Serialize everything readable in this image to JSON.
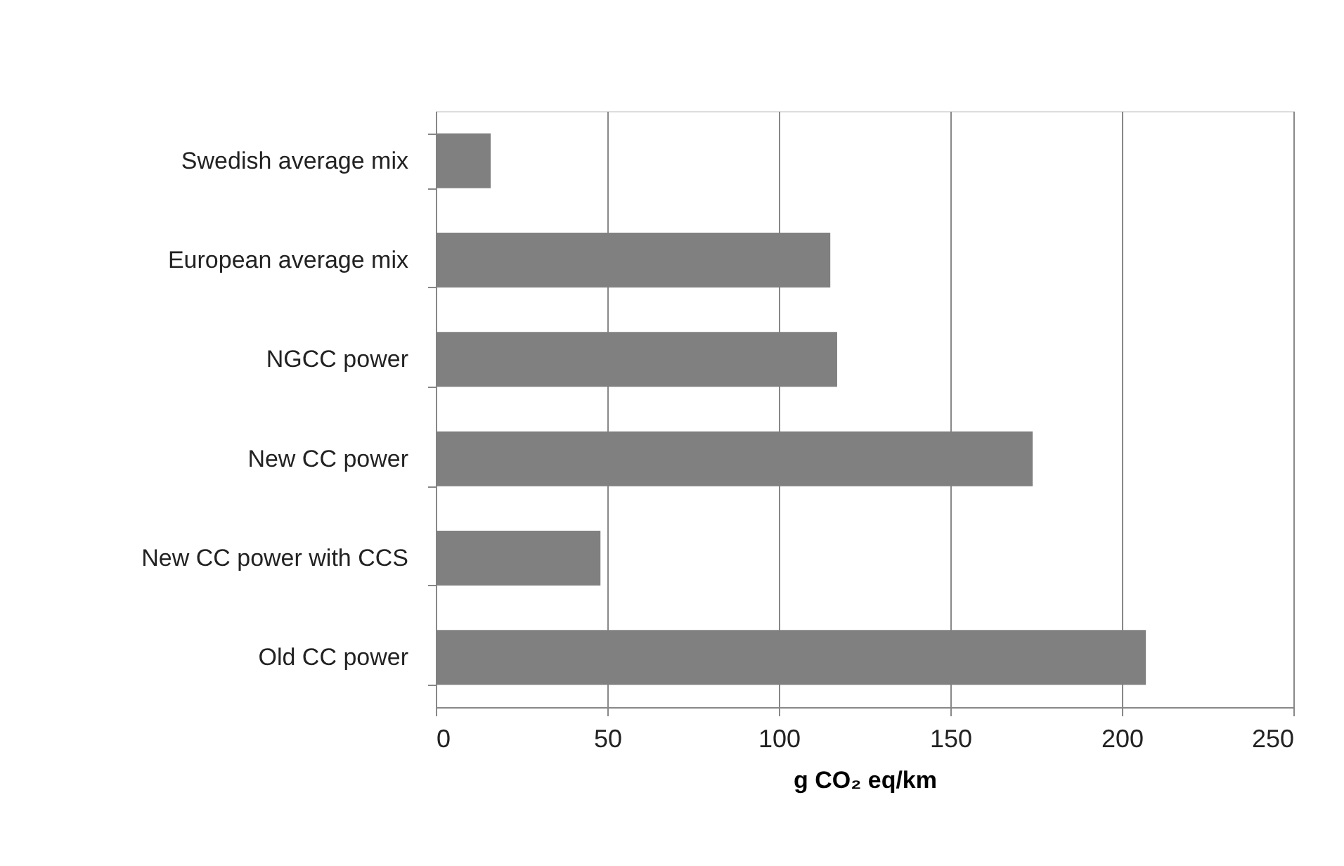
{
  "chart_data": {
    "type": "bar",
    "orientation": "horizontal",
    "xlabel": "g CO₂ eq/km",
    "categories": [
      "Swedish average mix",
      "European average mix",
      "NGCC power",
      "New CC power",
      "New CC power with CCS",
      "Old CC power"
    ],
    "values": [
      16,
      115,
      117,
      174,
      48,
      207
    ],
    "color": "#808080",
    "xlim": [
      0,
      250
    ],
    "xticks": [
      0,
      50,
      100,
      150,
      200,
      250
    ],
    "grid": "x"
  }
}
